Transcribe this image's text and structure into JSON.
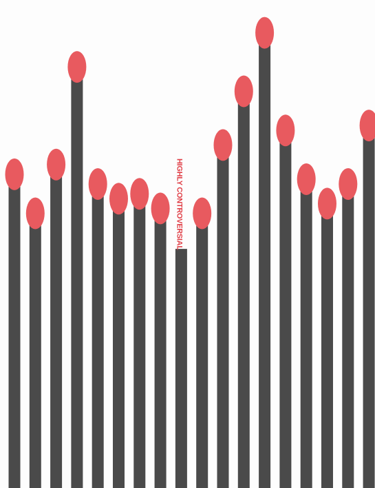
{
  "poster": {
    "caption": "HIGHLY CONTROVERSIAL",
    "colors": {
      "background": "#fdfdfd",
      "stick": "#4a4a4a",
      "match_head": "#e85a5f",
      "caption": "#e04048"
    },
    "icon": "matchstick-icon",
    "matches": [
      {
        "height": 0.64,
        "lit": true
      },
      {
        "height": 0.56,
        "lit": true
      },
      {
        "height": 0.66,
        "lit": true
      },
      {
        "height": 0.86,
        "lit": true
      },
      {
        "height": 0.62,
        "lit": true
      },
      {
        "height": 0.59,
        "lit": true
      },
      {
        "height": 0.6,
        "lit": true
      },
      {
        "height": 0.57,
        "lit": true
      },
      {
        "height": 0.49,
        "lit": false
      },
      {
        "height": 0.56,
        "lit": true
      },
      {
        "height": 0.7,
        "lit": true
      },
      {
        "height": 0.81,
        "lit": true
      },
      {
        "height": 0.93,
        "lit": true
      },
      {
        "height": 0.73,
        "lit": true
      },
      {
        "height": 0.63,
        "lit": true
      },
      {
        "height": 0.58,
        "lit": true
      },
      {
        "height": 0.62,
        "lit": true
      },
      {
        "height": 0.74,
        "lit": true
      }
    ]
  }
}
